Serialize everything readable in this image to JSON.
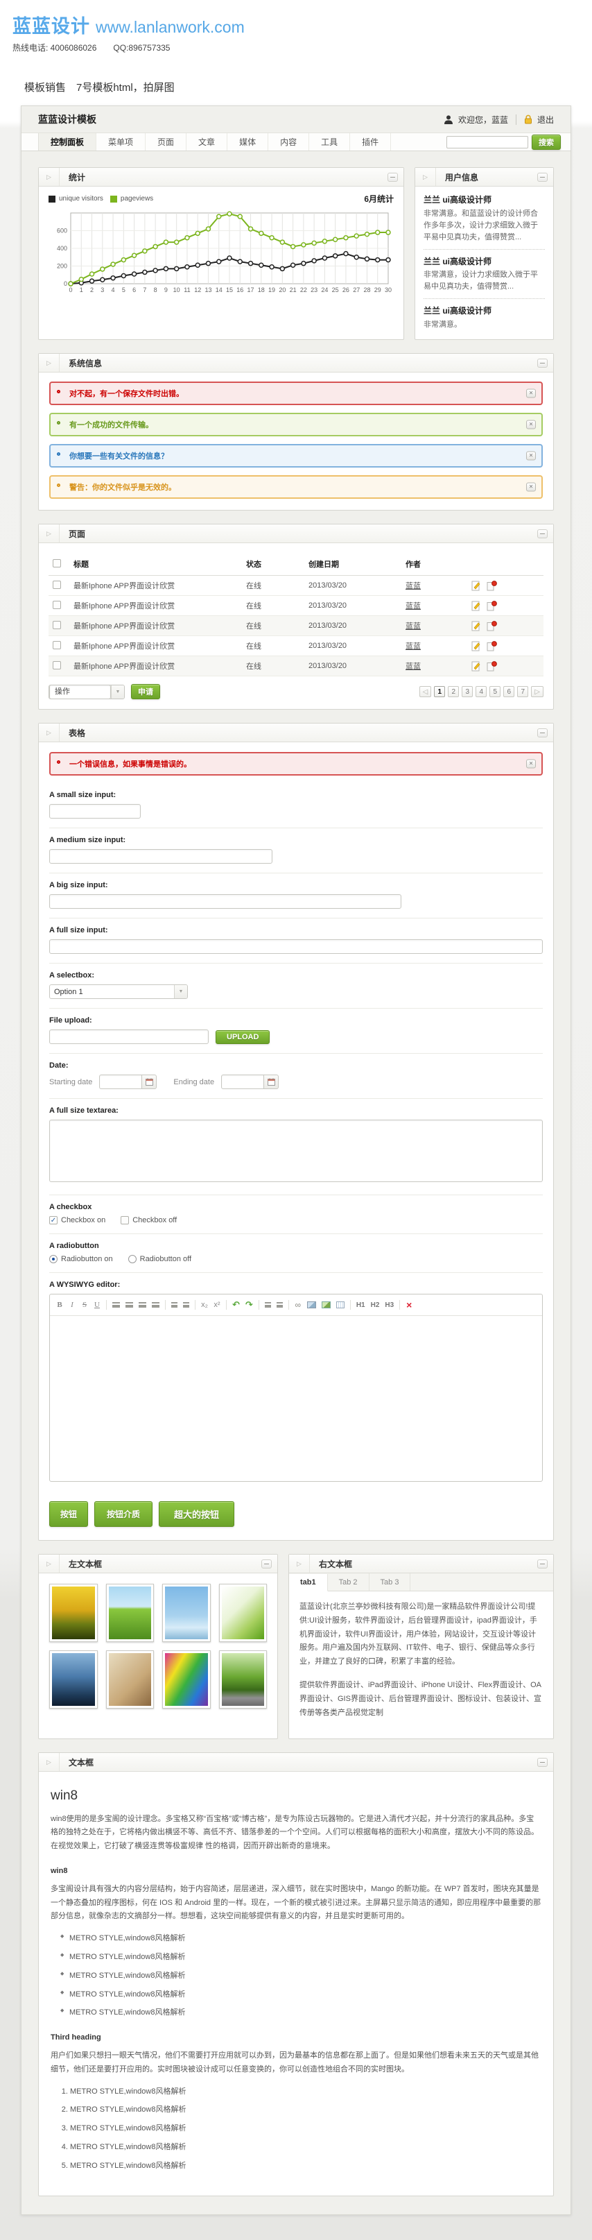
{
  "page": {
    "logo_cn": "蓝蓝设计",
    "logo_url": "www.lanlanwork.com",
    "contact": "热线电话: 4006086026　　QQ:896757335",
    "title": "模板销售　7号模板html，拍屏图"
  },
  "ui": {
    "collapse_glyph": "▷",
    "close_glyph": "×",
    "check_glyph": "✓",
    "dropdown_glyph": "▼",
    "pager_prev": "◁",
    "pager_next": "▷"
  },
  "mock": {
    "brand": "蓝蓝设计模板",
    "welcome": "欢迎您，蓝蓝",
    "logout": "退出",
    "nav": [
      "控制面板",
      "菜单项",
      "页面",
      "文章",
      "媒体",
      "内容",
      "工具",
      "插件"
    ],
    "search_label": "搜索"
  },
  "stats": {
    "title": "统计",
    "legend": [
      "unique visitors",
      "pageviews"
    ],
    "period": "6月统计",
    "chart_data": {
      "type": "line",
      "x": [
        0,
        1,
        2,
        3,
        4,
        5,
        6,
        7,
        8,
        9,
        10,
        11,
        12,
        13,
        14,
        15,
        16,
        17,
        18,
        19,
        20,
        21,
        22,
        23,
        24,
        25,
        26,
        27,
        28,
        29,
        30
      ],
      "series": [
        {
          "name": "unique visitors",
          "color": "#222222",
          "values": [
            0,
            10,
            30,
            45,
            65,
            90,
            110,
            130,
            150,
            170,
            170,
            190,
            210,
            230,
            250,
            290,
            250,
            230,
            210,
            190,
            170,
            210,
            230,
            260,
            290,
            315,
            340,
            300,
            280,
            270,
            270
          ]
        },
        {
          "name": "pageviews",
          "color": "#7cb51e",
          "values": [
            0,
            50,
            110,
            165,
            220,
            270,
            320,
            370,
            420,
            470,
            470,
            520,
            570,
            620,
            760,
            790,
            760,
            620,
            570,
            520,
            470,
            420,
            440,
            460,
            480,
            500,
            520,
            540,
            560,
            580,
            580
          ]
        }
      ],
      "ylim": [
        0,
        800
      ],
      "yticks": [
        0,
        200,
        400,
        600
      ],
      "title": "6月统计",
      "grid": true,
      "legend_position": "top-left"
    }
  },
  "user_info": {
    "title": "用户信息",
    "entries": [
      {
        "name": "兰兰 ui高级设计师",
        "text": "非常满意。和蓝蓝设计的设计师合作多年多次，设计力求细致入微于平易中见真功夫，值得赞赏..."
      },
      {
        "name": "兰兰 ui高级设计师",
        "text": "非常满意，设计力求细致入微于平易中见真功夫，值得赞赏..."
      },
      {
        "name": "兰兰 ui高级设计师",
        "text": "非常满意。"
      }
    ]
  },
  "system_info": {
    "title": "系统信息",
    "alerts": [
      {
        "type": "error",
        "text": "对不起，有一个保存文件时出错。"
      },
      {
        "type": "success",
        "text": "有一个成功的文件传输。"
      },
      {
        "type": "info",
        "text": "你想要一些有关文件的信息？"
      },
      {
        "type": "warning",
        "text": "警告：你的文件似乎是无效的。"
      }
    ]
  },
  "pages_table": {
    "title": "页面",
    "columns": [
      "标题",
      "状态",
      "创建日期",
      "作者"
    ],
    "rows": [
      {
        "title": "最新Iphone APP界面设计欣赏",
        "status": "在线",
        "date": "2013/03/20",
        "author": "蓝蓝"
      },
      {
        "title": "最新Iphone APP界面设计欣赏",
        "status": "在线",
        "date": "2013/03/20",
        "author": "蓝蓝"
      },
      {
        "title": "最新Iphone APP界面设计欣赏",
        "status": "在线",
        "date": "2013/03/20",
        "author": "蓝蓝"
      },
      {
        "title": "最新Iphone APP界面设计欣赏",
        "status": "在线",
        "date": "2013/03/20",
        "author": "蓝蓝"
      },
      {
        "title": "最新Iphone APP界面设计欣赏",
        "status": "在线",
        "date": "2013/03/20",
        "author": "蓝蓝"
      }
    ],
    "action_label": "操作",
    "apply_label": "申请",
    "pagination": [
      "1",
      "2",
      "3",
      "4",
      "5",
      "6",
      "7"
    ]
  },
  "form": {
    "title": "表格",
    "error": "一个错误信息，如果事情是错误的。",
    "labels": {
      "small": "A small size input:",
      "medium": "A medium size input:",
      "big": "A big size input:",
      "full": "A full size input:",
      "select": "A selectbox:",
      "upload": "File upload:",
      "date": "Date:",
      "textarea": "A full size textarea:",
      "checkbox": "A checkbox",
      "radio": "A radiobutton",
      "wysiwyg": "A WYSIWYG editor:"
    },
    "option": "Option 1",
    "upload_label": "UPLOAD",
    "date_start": "Starting date",
    "date_end": "Ending date",
    "checkbox_on": "Checkbox on",
    "checkbox_off": "Checkbox off",
    "radio_on": "Radiobutton on",
    "radio_off": "Radiobutton off",
    "editor_glyphs": {
      "bold": "B",
      "italic": "I",
      "strike": "S",
      "underline": "U",
      "sub": "x₂",
      "sup": "x²",
      "undo": "↶",
      "redo": "↷",
      "link": "∞",
      "h1": "H1",
      "h2": "H2",
      "h3": "H3",
      "remove": "×"
    },
    "buttons": [
      "按钮",
      "按钮介质",
      "超大的按钮"
    ]
  },
  "left_box": {
    "title": "左文本框"
  },
  "right_box": {
    "title": "右文本框",
    "tabs": [
      "tab1",
      "Tab 2",
      "Tab 3"
    ],
    "p1": "蓝蓝设计(北京兰亭妙微科技有限公司)是一家精品软件界面设计公司!提供:UI设计服务，软件界面设计，后台管理界面设计，ipad界面设计，手机界面设计，软件UI界面设计，用户体验，网站设计，交互设计等设计服务。用户遍及国内外互联网、IT软件、电子、银行、保健品等众多行业，并建立了良好的口碑，积累了丰富的经验。",
    "p2": "提供软件界面设计、iPad界面设计、iPhone UI设计、Flex界面设计、OA界面设计、GIS界面设计、后台管理界面设计、图标设计、包装设计、宣传册等各类产品视觉定制"
  },
  "text_box": {
    "title": "文本框",
    "h1": "win8",
    "p1": "win8使用的是多宝阁的设计理念。多宝格又称“百宝格”或“博古格”，是专为陈设古玩器物的。它是进入清代才兴起，并十分流行的家具品种。多宝格的独特之处在于，它将格内做出横竖不等、高低不齐、错落参差的一个个空间。人们可以根据每格的面积大小和高度，摆放大小不同的陈设品。在视觉效果上，它打破了横竖连贯等极富规律 性的格调，因而开辟出新奇的意境来。",
    "h2": "win8",
    "p2": "多宝阁设计具有强大的内容分层结构，始于内容简述，层层递进，深入细节，就在实时图块中，Mango 的新功能。在 WP7 首发时，图块充其量是一个静态叠加的程序图标，何在 IOS 和 Android 里的一样。现在，一个新的模式被引进过来。主屏幕只显示简洁的通知，即应用程序中最重要的那部分信息，就像杂志的文摘部分一样。想想看，这块空间能够提供有意义的内容，并且是实时更新可用的。",
    "bullets": [
      "METRO STYLE,window8风格解析",
      "METRO STYLE,window8风格解析",
      "METRO STYLE,window8风格解析",
      "METRO STYLE,window8风格解析",
      "METRO STYLE,window8风格解析"
    ],
    "h3": "Third heading",
    "p3": "用户们如果只想扫一眼天气情况，他们不需要打开应用就可以办到，因为最基本的信息都在那上面了。但是如果他们想看未来五天的天气或是其他细节，他们还是要打开应用的。实时图块被设计成可以任意变换的，你可以创造性地组合不同的实时图块。",
    "numbered": [
      "METRO STYLE,window8风格解析",
      "METRO STYLE,window8风格解析",
      "METRO STYLE,window8风格解析",
      "METRO STYLE,window8风格解析",
      "METRO STYLE,window8风格解析"
    ]
  }
}
